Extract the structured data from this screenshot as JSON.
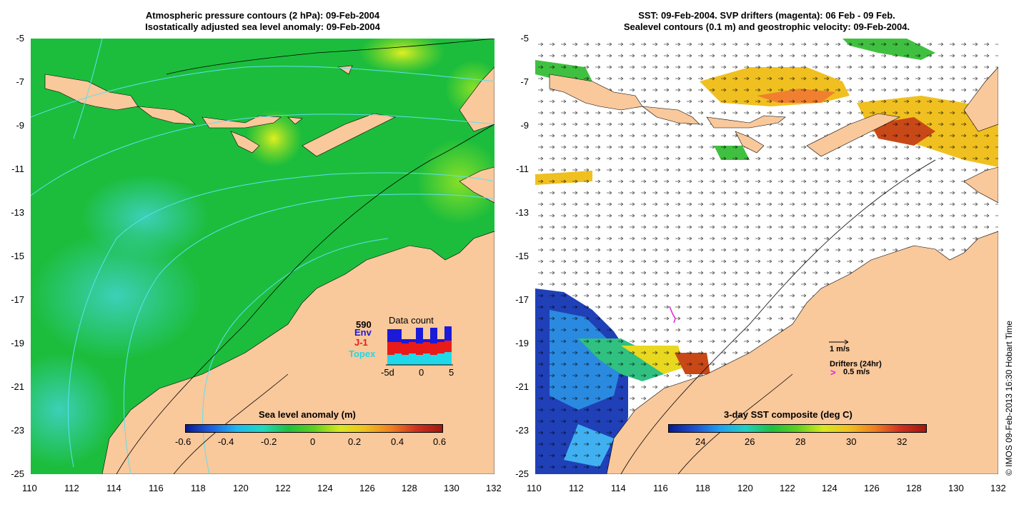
{
  "left_panel": {
    "title_line1": "Atmospheric pressure contours (2 hPa): 09-Feb-2004",
    "title_line2": "Isostatically adjusted sea level anomaly: 09-Feb-2004",
    "colorbar": {
      "title": "Sea level anomaly (m)",
      "ticks": [
        "-0.6",
        "-0.4",
        "-0.2",
        "0",
        "0.2",
        "0.4",
        "0.6"
      ]
    },
    "data_count": {
      "title": "Data count",
      "total": "590",
      "env_label": "Env",
      "j1_label": "J-1",
      "topex_label": "Topex",
      "axis_ticks": [
        "-5d",
        "0",
        "5"
      ],
      "colors": {
        "env": "#1a1ad8",
        "j1": "#e81a1a",
        "topex": "#20d8e8"
      }
    }
  },
  "right_panel": {
    "title_line1": "SST: 09-Feb-2004. SVP drifters (magenta): 06 Feb - 09 Feb.",
    "title_line2": "Sealevel contours (0.1 m) and geostrophic velocity: 09-Feb-2004.",
    "colorbar": {
      "title": "3-day SST composite (deg C)",
      "ticks": [
        "24",
        "26",
        "28",
        "30",
        "32"
      ]
    },
    "legend": {
      "velocity_label": "1 m/s",
      "drifters_label": "Drifters (24hr)",
      "drifter_speed_label": "0.5 m/s",
      "drifter_color": "#e020e0"
    }
  },
  "axes": {
    "x_ticks": [
      "110",
      "112",
      "114",
      "116",
      "118",
      "120",
      "122",
      "124",
      "126",
      "128",
      "130",
      "132"
    ],
    "y_ticks": [
      "-5",
      "-7",
      "-9",
      "-11",
      "-13",
      "-15",
      "-17",
      "-19",
      "-21",
      "-23",
      "-25"
    ]
  },
  "copyright": "© IMOS 09-Feb-2013 16:30 Hobart Time",
  "colors": {
    "land": "#f9c89b",
    "sea_green": "#18b838",
    "sea_cyan": "#30c8a8",
    "sst_blue": "#1030a8"
  }
}
